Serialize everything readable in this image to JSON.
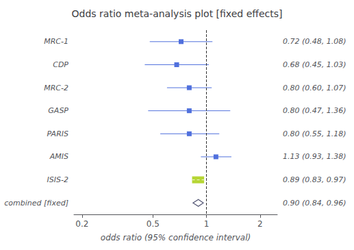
{
  "chart_data": {
    "type": "forest",
    "title": "Odds ratio meta-analysis plot [fixed effects]",
    "xlabel": "odds ratio (95% confidence interval)",
    "categories": [
      "MRC-1",
      "CDP",
      "MRC-2",
      "GASP",
      "PARIS",
      "AMIS",
      "ISIS-2",
      "combined [fixed]"
    ],
    "series": [
      {
        "marker": "square",
        "values": [
          0.72,
          0.68,
          0.8,
          0.8,
          0.8,
          1.13,
          null,
          null
        ],
        "ci_lower": [
          0.48,
          0.45,
          0.6,
          0.47,
          0.55,
          0.93,
          null,
          null
        ],
        "ci_upper": [
          1.08,
          1.03,
          1.07,
          1.36,
          1.18,
          1.38,
          null,
          null
        ],
        "value_labels": [
          "0.72 (0.48, 1.08)",
          "0.68 (0.45, 1.03)",
          "0.80 (0.60, 1.07)",
          "0.80 (0.47, 1.36)",
          "0.80 (0.55, 1.18)",
          "1.13 (0.93, 1.38)",
          null,
          null
        ]
      },
      {
        "marker": "rect",
        "values": [
          null,
          null,
          null,
          null,
          null,
          null,
          0.89,
          null
        ],
        "ci_lower": [
          null,
          null,
          null,
          null,
          null,
          null,
          0.83,
          null
        ],
        "ci_upper": [
          null,
          null,
          null,
          null,
          null,
          null,
          0.97,
          null
        ],
        "value_labels": [
          null,
          null,
          null,
          null,
          null,
          null,
          "0.89 (0.83, 0.97)",
          null
        ]
      },
      {
        "marker": "diamond",
        "values": [
          null,
          null,
          null,
          null,
          null,
          null,
          null,
          0.9
        ],
        "ci_lower": [
          null,
          null,
          null,
          null,
          null,
          null,
          null,
          0.84
        ],
        "ci_upper": [
          null,
          null,
          null,
          null,
          null,
          null,
          null,
          0.96
        ],
        "value_labels": [
          null,
          null,
          null,
          null,
          null,
          null,
          null,
          "0.90 (0.84, 0.96)"
        ]
      }
    ],
    "reference_line": 1,
    "log": "x",
    "xlim": [
      0.18,
      2.5
    ],
    "xticks": [
      0.2,
      0.5,
      1,
      2
    ],
    "grid": false
  }
}
